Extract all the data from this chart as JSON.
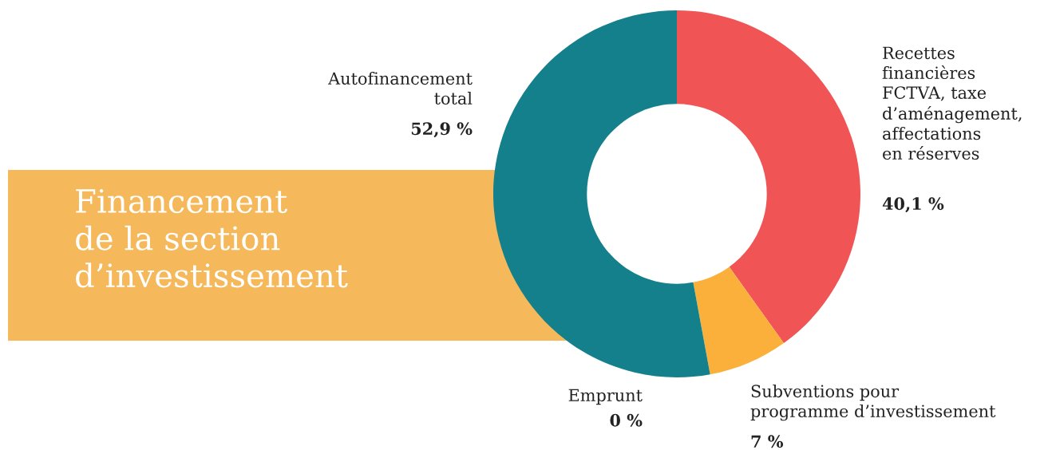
{
  "chart_data": {
    "type": "donut",
    "title": "Financement\nde la section\nd’investissement",
    "categories": [
      "Recettes\nfinancières\nFCTVA, taxe\nd’aménagement,\naffectations\nen réserves",
      "Subventions pour\nprogramme d’investissement",
      "Emprunt",
      "Autofinancement\ntotal"
    ],
    "values": [
      40.1,
      7,
      0,
      52.9
    ],
    "colors": [
      "#f05454",
      "#fbb03b",
      "#9e9e9e",
      "#13808c"
    ],
    "value_labels": [
      "40,1 %",
      "7 %",
      "0 %",
      "52,9 %"
    ],
    "legend": false
  }
}
